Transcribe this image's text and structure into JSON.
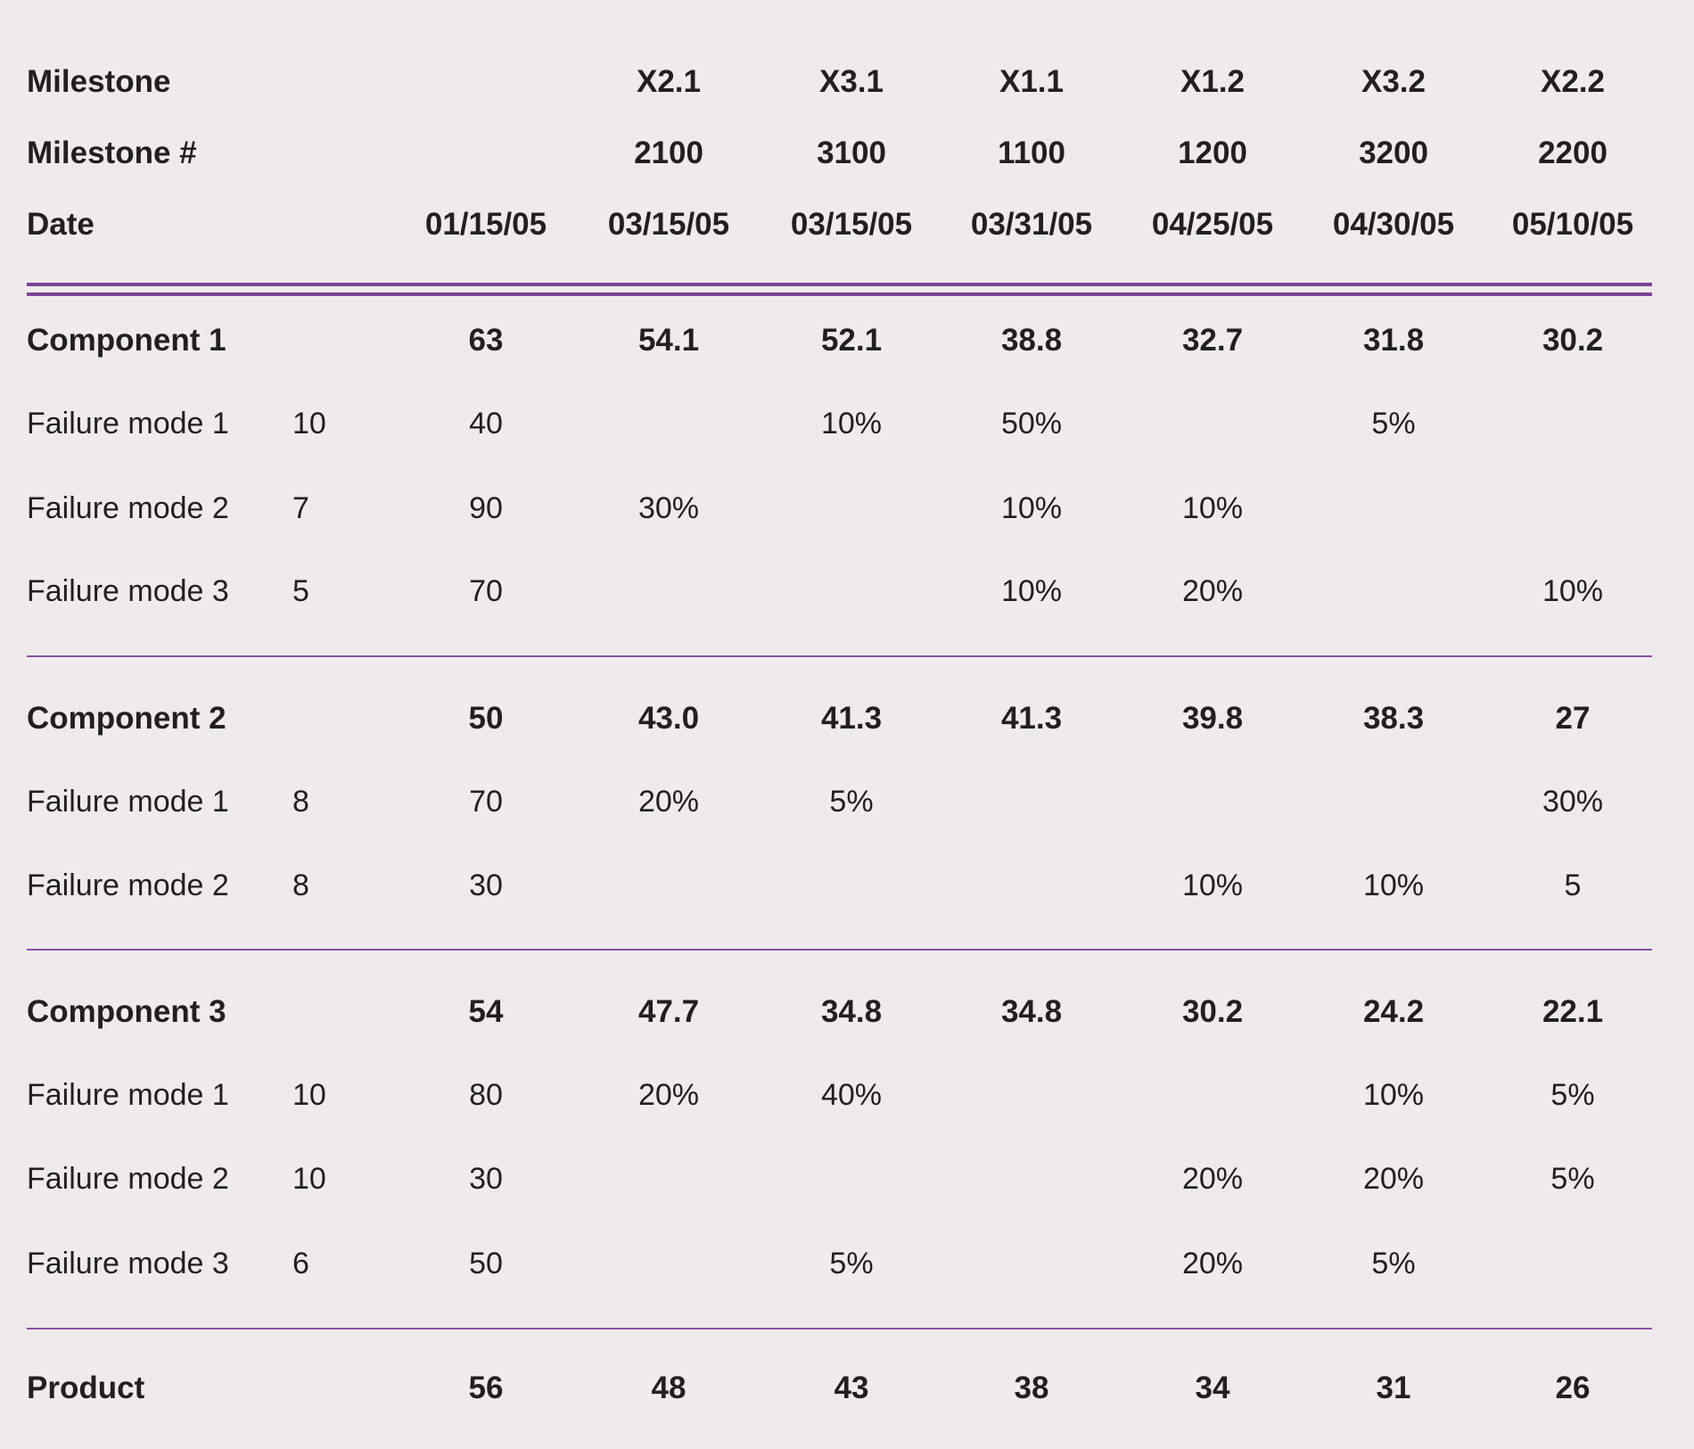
{
  "header": {
    "milestone_label": "Milestone",
    "milestone_num_label": "Milestone #",
    "date_label": "Date",
    "milestones": [
      "",
      "X2.1",
      "X3.1",
      "X1.1",
      "X1.2",
      "X3.2",
      "X2.2"
    ],
    "milestone_numbers": [
      "",
      "2100",
      "3100",
      "1100",
      "1200",
      "3200",
      "2200"
    ],
    "dates": [
      "01/15/05",
      "03/15/05",
      "03/15/05",
      "03/31/05",
      "04/25/05",
      "04/30/05",
      "05/10/05"
    ]
  },
  "components": [
    {
      "name": "Component 1",
      "values": [
        "63",
        "54.1",
        "52.1",
        "38.8",
        "32.7",
        "31.8",
        "30.2"
      ],
      "modes": [
        {
          "name": "Failure mode 1",
          "weight": "10",
          "cells": [
            "40",
            "",
            "10%",
            "50%",
            "",
            "5%",
            ""
          ]
        },
        {
          "name": "Failure mode 2",
          "weight": "7",
          "cells": [
            "90",
            "30%",
            "",
            "10%",
            "10%",
            "",
            ""
          ]
        },
        {
          "name": "Failure mode 3",
          "weight": "5",
          "cells": [
            "70",
            "",
            "",
            "10%",
            "20%",
            "",
            "10%"
          ]
        }
      ]
    },
    {
      "name": "Component 2",
      "values": [
        "50",
        "43.0",
        "41.3",
        "41.3",
        "39.8",
        "38.3",
        "27"
      ],
      "modes": [
        {
          "name": "Failure mode 1",
          "weight": "8",
          "cells": [
            "70",
            "20%",
            "5%",
            "",
            "",
            "",
            "30%"
          ]
        },
        {
          "name": "Failure mode 2",
          "weight": "8",
          "cells": [
            "30",
            "",
            "",
            "",
            "10%",
            "10%",
            "5"
          ]
        }
      ]
    },
    {
      "name": "Component 3",
      "values": [
        "54",
        "47.7",
        "34.8",
        "34.8",
        "30.2",
        "24.2",
        "22.1"
      ],
      "modes": [
        {
          "name": "Failure mode 1",
          "weight": "10",
          "cells": [
            "80",
            "20%",
            "40%",
            "",
            "",
            "10%",
            "5%"
          ]
        },
        {
          "name": "Failure mode 2",
          "weight": "10",
          "cells": [
            "30",
            "",
            "",
            "",
            "20%",
            "20%",
            "5%"
          ]
        },
        {
          "name": "Failure mode 3",
          "weight": "6",
          "cells": [
            "50",
            "",
            "5%",
            "",
            "20%",
            "5%",
            ""
          ]
        }
      ]
    }
  ],
  "product": {
    "label": "Product",
    "values": [
      "56",
      "48",
      "43",
      "38",
      "34",
      "31",
      "26"
    ]
  }
}
